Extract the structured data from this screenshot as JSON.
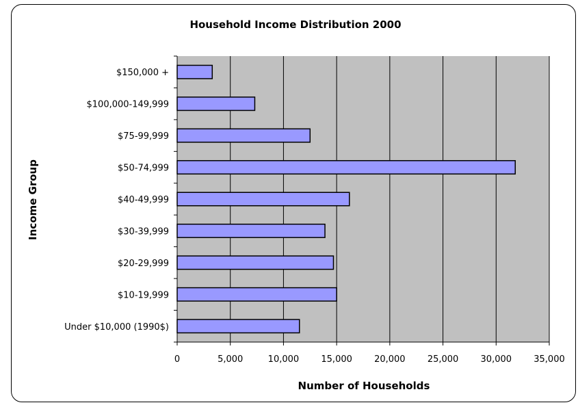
{
  "chart_data": {
    "type": "bar",
    "orientation": "horizontal",
    "title": "Household Income Distribution 2000",
    "xlabel": "Number of Households",
    "ylabel": "Income Group",
    "categories": [
      "Under $10,000 (1990$)",
      "$10-19,999",
      "$20-29,999",
      "$30-39,999",
      "$40-49,999",
      "$50-74,999",
      "$75-99,999",
      "$100,000-149,999",
      "$150,000 +"
    ],
    "values": [
      11500,
      15000,
      14700,
      13900,
      16200,
      31800,
      12500,
      7300,
      3300
    ],
    "xlim": [
      0,
      35000
    ],
    "xticks": [
      0,
      5000,
      10000,
      15000,
      20000,
      25000,
      30000,
      35000
    ],
    "xtick_labels": [
      "0",
      "5,000",
      "10,000",
      "15,000",
      "20,000",
      "25,000",
      "30,000",
      "35,000"
    ],
    "grid": "vertical",
    "legend": "none",
    "colors": {
      "bar_fill": "#9999ff",
      "bar_stroke": "#000000",
      "plot_background": "#c0c0c0",
      "gridline": "#000000"
    }
  }
}
